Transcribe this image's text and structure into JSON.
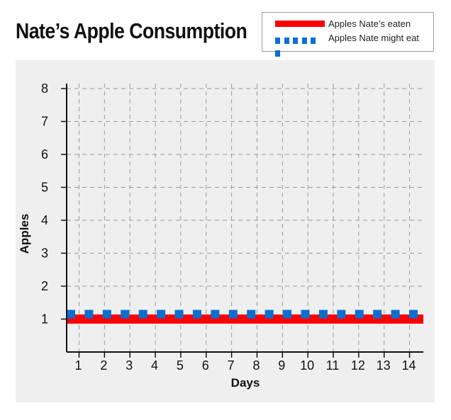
{
  "title": "Nate’s Apple Consumption",
  "legend": {
    "items": [
      {
        "label": "Apples Nate’s eaten",
        "color": "#ff0000",
        "style": "solid"
      },
      {
        "label": "Apples Nate might eat",
        "color": "#0a6fd1",
        "style": "dotted"
      }
    ]
  },
  "colors": {
    "panel": "#efefef",
    "grid": "#9a9a9a",
    "axis": "#111111"
  },
  "chart_data": {
    "type": "line",
    "title": "Nate’s Apple Consumption",
    "xlabel": "Days",
    "ylabel": "Apples",
    "x": [
      1,
      2,
      3,
      4,
      5,
      6,
      7,
      8,
      9,
      10,
      11,
      12,
      13,
      14
    ],
    "xticks": [
      "1",
      "2",
      "3",
      "4",
      "5",
      "6",
      "7",
      "8",
      "9",
      "10",
      "11",
      "12",
      "13",
      "14"
    ],
    "yticks": [
      "1",
      "2",
      "3",
      "4",
      "5",
      "6",
      "7",
      "8"
    ],
    "ylim": [
      0,
      8
    ],
    "grid": true,
    "legend_position": "top-right",
    "series": [
      {
        "name": "Apples Nate’s eaten",
        "color": "#ff0000",
        "style": "solid",
        "values": [
          1,
          1,
          1,
          1,
          1,
          1,
          1,
          1,
          1,
          1,
          1,
          1,
          1,
          1
        ]
      },
      {
        "name": "Apples Nate might eat",
        "color": "#0a6fd1",
        "style": "dotted",
        "values": [
          1.15,
          1.15,
          1.15,
          1.15,
          1.15,
          1.15,
          1.15,
          1.15,
          1.15,
          1.15,
          1.15,
          1.15,
          1.15,
          1.15
        ]
      }
    ]
  }
}
